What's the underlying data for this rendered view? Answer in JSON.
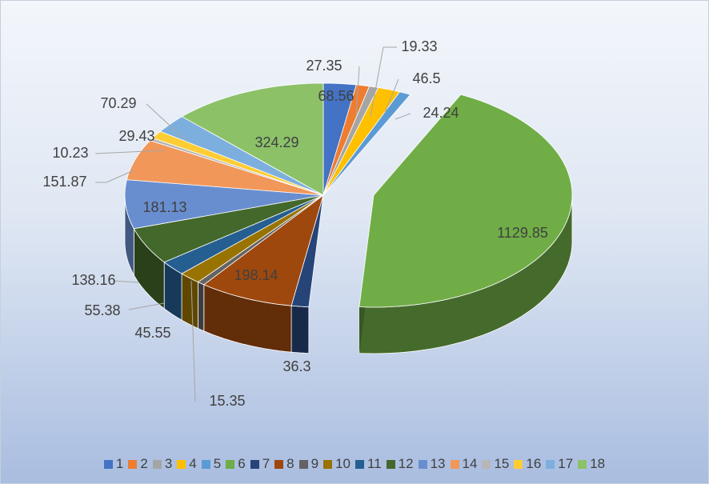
{
  "chart_data": {
    "type": "pie",
    "title": "",
    "categories": [
      "1",
      "2",
      "3",
      "4",
      "5",
      "6",
      "7",
      "8",
      "9",
      "10",
      "11",
      "12",
      "13",
      "14",
      "15",
      "16",
      "17",
      "18"
    ],
    "values": [
      68.56,
      27.35,
      19.33,
      46.5,
      24.24,
      1129.85,
      36.3,
      198.14,
      15.35,
      45.55,
      55.38,
      138.16,
      181.13,
      151.87,
      10.23,
      29.43,
      70.29,
      324.29
    ],
    "labels": [
      "68.56",
      "27.35",
      "19.33",
      "46.5",
      "24.24",
      "1129.85",
      "36.3",
      "198.14",
      "15.35",
      "45.55",
      "55.38",
      "138.16",
      "181.13",
      "151.87",
      "10.23",
      "29.43",
      "70.29",
      "324.29"
    ],
    "colors": [
      "#4472C4",
      "#ED7D31",
      "#A5A5A5",
      "#FFC000",
      "#5B9BD5",
      "#70AD47",
      "#264478",
      "#9E480E",
      "#636363",
      "#997300",
      "#255E91",
      "#43682B",
      "#698ED0",
      "#F1975A",
      "#B7B7B7",
      "#FFCD33",
      "#7CAFDD",
      "#8CC168"
    ],
    "exploded_slice": "6",
    "legend_position": "bottom",
    "three_d": true
  }
}
